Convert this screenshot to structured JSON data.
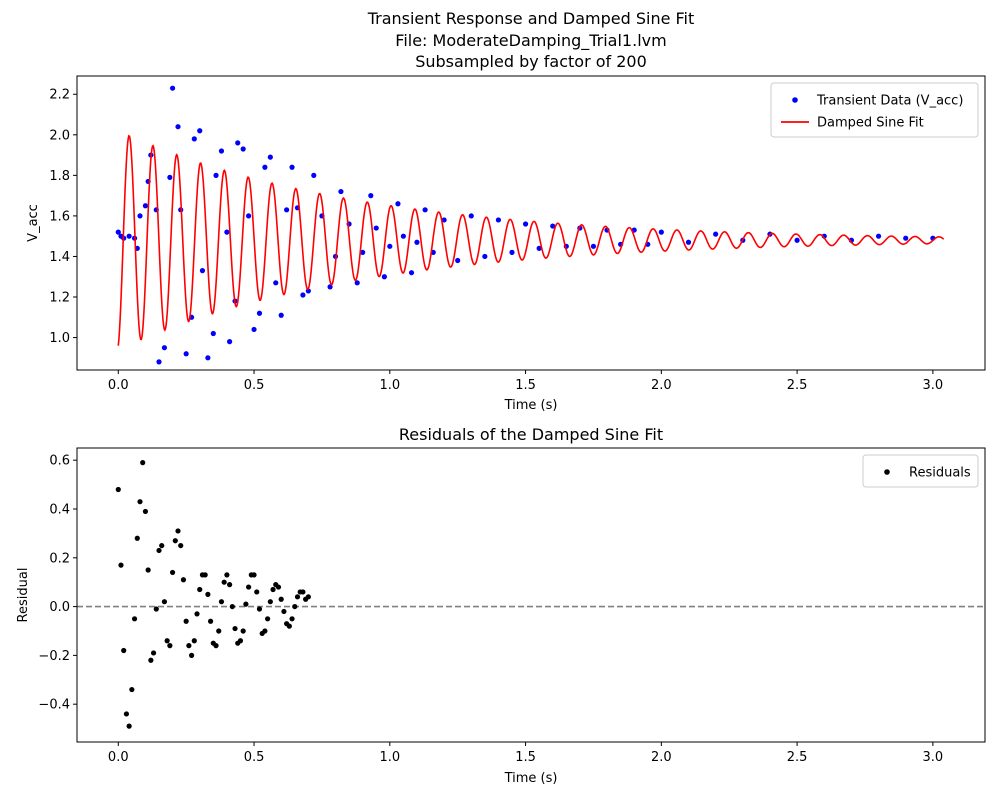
{
  "chart_data": [
    {
      "type": "scatter",
      "title_lines": [
        "Transient Response and Damped Sine Fit",
        "File: ModerateDamping_Trial1.lvm",
        "Subsampled by factor of 200"
      ],
      "xlabel": "Time (s)",
      "ylabel": "V_acc",
      "xlim": [
        -0.152,
        3.192
      ],
      "ylim": [
        0.84,
        2.29
      ],
      "xticks": [
        0.0,
        0.5,
        1.0,
        1.5,
        2.0,
        2.5,
        3.0
      ],
      "xtick_labels": [
        "0.0",
        "0.5",
        "1.0",
        "1.5",
        "2.0",
        "2.5",
        "3.0"
      ],
      "yticks": [
        1.0,
        1.2,
        1.4,
        1.6,
        1.8,
        2.0,
        2.2
      ],
      "ytick_labels": [
        "1.0",
        "1.2",
        "1.4",
        "1.6",
        "1.8",
        "2.0",
        "2.2"
      ],
      "grid": false,
      "legend_position": "top-right",
      "series": [
        {
          "name": "Transient Data (V_acc)",
          "kind": "points",
          "color": "#0000ff",
          "x": [
            0.0,
            0.01,
            0.02,
            0.04,
            0.06,
            0.07,
            0.08,
            0.1,
            0.11,
            0.12,
            0.14,
            0.15,
            0.17,
            0.19,
            0.2,
            0.22,
            0.23,
            0.25,
            0.27,
            0.28,
            0.3,
            0.31,
            0.33,
            0.35,
            0.36,
            0.38,
            0.4,
            0.41,
            0.43,
            0.44,
            0.46,
            0.48,
            0.5,
            0.52,
            0.54,
            0.56,
            0.58,
            0.6,
            0.62,
            0.64,
            0.66,
            0.68,
            0.7,
            0.72,
            0.75,
            0.78,
            0.8,
            0.82,
            0.85,
            0.88,
            0.9,
            0.93,
            0.95,
            0.98,
            1.0,
            1.03,
            1.05,
            1.08,
            1.1,
            1.13,
            1.16,
            1.2,
            1.25,
            1.3,
            1.35,
            1.4,
            1.45,
            1.5,
            1.55,
            1.6,
            1.65,
            1.7,
            1.75,
            1.8,
            1.85,
            1.9,
            1.95,
            2.0,
            2.1,
            2.2,
            2.3,
            2.4,
            2.5,
            2.6,
            2.7,
            2.8,
            2.9,
            3.0
          ],
          "y": [
            1.52,
            1.5,
            1.49,
            1.5,
            1.49,
            1.44,
            1.6,
            1.65,
            1.77,
            1.9,
            1.63,
            0.88,
            0.95,
            1.79,
            2.23,
            2.04,
            1.63,
            0.92,
            1.1,
            1.98,
            2.02,
            1.33,
            0.9,
            1.02,
            1.8,
            1.92,
            1.52,
            0.98,
            1.18,
            1.96,
            1.93,
            1.6,
            1.04,
            1.12,
            1.84,
            1.89,
            1.27,
            1.11,
            1.63,
            1.84,
            1.64,
            1.21,
            1.23,
            1.8,
            1.6,
            1.25,
            1.4,
            1.72,
            1.56,
            1.27,
            1.42,
            1.7,
            1.54,
            1.3,
            1.45,
            1.66,
            1.5,
            1.32,
            1.47,
            1.63,
            1.42,
            1.58,
            1.38,
            1.6,
            1.4,
            1.58,
            1.42,
            1.56,
            1.44,
            1.55,
            1.45,
            1.54,
            1.45,
            1.53,
            1.46,
            1.53,
            1.46,
            1.52,
            1.47,
            1.51,
            1.48,
            1.51,
            1.48,
            1.5,
            1.48,
            1.5,
            1.49,
            1.49
          ]
        },
        {
          "name": "Damped Sine Fit",
          "kind": "line",
          "color": "#ff0000",
          "model": {
            "offset": 1.48,
            "amplitude": 0.54,
            "decay_rate": 1.15,
            "frequency_hz": 11.4,
            "phase": -1.3,
            "t_start": 0.0,
            "t_end": 3.04
          }
        }
      ]
    },
    {
      "type": "scatter",
      "title_lines": [
        "Residuals of the Damped Sine Fit"
      ],
      "xlabel": "Time (s)",
      "ylabel": "Residual",
      "xlim": [
        -0.152,
        3.192
      ],
      "ylim": [
        -0.555,
        0.65
      ],
      "xticks": [
        0.0,
        0.5,
        1.0,
        1.5,
        2.0,
        2.5,
        3.0
      ],
      "xtick_labels": [
        "0.0",
        "0.5",
        "1.0",
        "1.5",
        "2.0",
        "2.5",
        "3.0"
      ],
      "yticks": [
        -0.4,
        -0.2,
        0.0,
        0.2,
        0.4,
        0.6
      ],
      "ytick_labels": [
        "−0.4",
        "−0.2",
        "0.0",
        "0.2",
        "0.4",
        "0.6"
      ],
      "grid": false,
      "legend_position": "top-right",
      "reference_line": {
        "y": 0.0,
        "style": "dashed",
        "color": "#808080"
      },
      "series": [
        {
          "name": "Residuals",
          "kind": "points",
          "color": "#000000",
          "x": [
            0.0,
            0.01,
            0.02,
            0.03,
            0.04,
            0.05,
            0.06,
            0.07,
            0.08,
            0.09,
            0.1,
            0.11,
            0.12,
            0.13,
            0.14,
            0.15,
            0.16,
            0.17,
            0.18,
            0.19,
            0.2,
            0.21,
            0.22,
            0.23,
            0.24,
            0.25,
            0.26,
            0.27,
            0.28,
            0.29,
            0.3,
            0.31,
            0.32,
            0.33,
            0.34,
            0.35,
            0.36,
            0.37,
            0.38,
            0.39,
            0.4,
            0.41,
            0.42,
            0.43,
            0.44,
            0.45,
            0.46,
            0.47,
            0.48,
            0.49,
            0.5,
            0.51,
            0.52,
            0.53,
            0.54,
            0.55,
            0.56,
            0.57,
            0.58,
            0.59,
            0.6,
            0.61,
            0.62,
            0.63,
            0.64,
            0.65,
            0.66,
            0.67,
            0.68,
            0.69,
            0.7
          ],
          "y": [
            0.48,
            0.17,
            -0.18,
            -0.44,
            -0.49,
            -0.34,
            -0.05,
            0.28,
            0.43,
            0.59,
            0.39,
            0.15,
            -0.22,
            -0.19,
            -0.01,
            0.23,
            0.25,
            0.02,
            -0.14,
            -0.16,
            0.14,
            0.27,
            0.31,
            0.25,
            0.11,
            -0.06,
            -0.16,
            -0.2,
            -0.14,
            -0.03,
            0.07,
            0.13,
            0.13,
            0.05,
            -0.06,
            -0.15,
            -0.16,
            -0.1,
            0.02,
            0.1,
            0.13,
            0.09,
            0.0,
            -0.09,
            -0.15,
            -0.14,
            -0.1,
            0.01,
            0.08,
            0.13,
            0.13,
            0.06,
            -0.01,
            -0.11,
            -0.1,
            -0.05,
            0.02,
            0.07,
            0.09,
            0.08,
            0.03,
            -0.02,
            -0.07,
            -0.08,
            -0.05,
            0.0,
            0.04,
            0.06,
            0.06,
            0.03,
            0.04
          ]
        }
      ]
    }
  ]
}
